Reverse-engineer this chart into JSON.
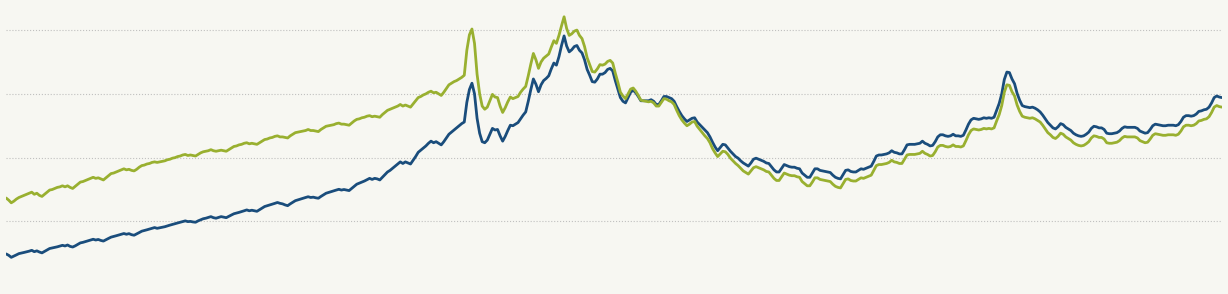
{
  "background_color": "#f7f7f2",
  "line_color_nominal": "#1a4d7c",
  "line_color_real": "#99b030",
  "line_width": 2.0,
  "grid_color": "#aaaaaa",
  "ylim_min": 40,
  "ylim_max": 300,
  "nominal": [
    69.4,
    68.1,
    66.2,
    67.3,
    68.5,
    69.7,
    70.2,
    70.8,
    71.4,
    72.0,
    72.8,
    71.5,
    72.3,
    71.2,
    70.4,
    71.8,
    73.2,
    74.5,
    75.0,
    75.6,
    76.1,
    76.8,
    77.5,
    76.9,
    77.8,
    76.5,
    75.9,
    77.0,
    78.4,
    79.8,
    80.3,
    81.0,
    81.7,
    82.4,
    83.2,
    82.5,
    83.0,
    82.1,
    81.5,
    82.8,
    84.0,
    85.2,
    85.8,
    86.5,
    87.2,
    87.9,
    88.6,
    87.9,
    88.5,
    87.5,
    87.0,
    88.2,
    89.5,
    90.8,
    91.4,
    92.1,
    92.8,
    93.5,
    94.2,
    93.5,
    94.0,
    94.5,
    95.0,
    95.8,
    96.5,
    97.2,
    97.8,
    98.5,
    99.2,
    99.8,
    100.5,
    99.8,
    100.0,
    99.5,
    99.2,
    100.5,
    101.5,
    102.5,
    103.0,
    103.8,
    104.5,
    103.5,
    103.0,
    103.8,
    104.5,
    104.0,
    103.5,
    104.8,
    106.0,
    107.2,
    107.8,
    108.5,
    109.2,
    110.0,
    110.8,
    110.0,
    110.5,
    110.0,
    109.5,
    111.0,
    112.5,
    114.0,
    114.8,
    115.5,
    116.2,
    117.0,
    117.8,
    117.0,
    116.5,
    115.5,
    114.8,
    116.5,
    118.0,
    119.5,
    120.2,
    121.0,
    121.8,
    122.5,
    123.2,
    122.5,
    122.8,
    122.2,
    121.8,
    123.5,
    125.0,
    126.5,
    127.2,
    128.0,
    128.8,
    129.5,
    130.2,
    129.5,
    130.0,
    129.5,
    129.0,
    131.0,
    133.0,
    135.0,
    136.0,
    137.0,
    138.0,
    139.2,
    140.5,
    139.5,
    140.5,
    140.0,
    139.0,
    141.5,
    144.0,
    146.5,
    148.0,
    150.0,
    152.0,
    154.0,
    156.0,
    154.5,
    156.0,
    155.0,
    154.0,
    157.5,
    161.0,
    165.0,
    167.0,
    169.0,
    171.0,
    173.5,
    175.5,
    174.0,
    175.0,
    173.5,
    172.0,
    175.0,
    178.5,
    182.0,
    184.0,
    186.0,
    188.0,
    190.0,
    192.0,
    193.5,
    212.0,
    224.0,
    230.0,
    220.0,
    197.0,
    183.0,
    175.0,
    174.0,
    176.5,
    182.0,
    187.5,
    186.0,
    186.5,
    180.5,
    175.5,
    180.0,
    185.5,
    190.5,
    190.0,
    191.5,
    193.0,
    196.5,
    200.0,
    203.0,
    213.0,
    224.0,
    234.0,
    229.0,
    222.0,
    228.5,
    232.5,
    234.5,
    237.0,
    243.5,
    249.0,
    247.0,
    255.0,
    265.5,
    274.5,
    265.0,
    259.5,
    261.5,
    264.5,
    265.5,
    261.0,
    258.5,
    252.0,
    243.0,
    237.5,
    231.5,
    231.0,
    234.0,
    238.5,
    238.5,
    240.0,
    243.0,
    244.0,
    241.5,
    232.5,
    224.5,
    216.5,
    213.0,
    211.5,
    216.5,
    221.5,
    223.5,
    221.0,
    217.5,
    213.5,
    213.5,
    213.5,
    213.5,
    214.5,
    213.0,
    210.0,
    210.0,
    213.5,
    217.5,
    217.5,
    216.5,
    215.5,
    213.0,
    208.0,
    203.5,
    199.5,
    196.5,
    194.0,
    195.5,
    197.0,
    197.5,
    193.5,
    191.0,
    188.5,
    186.0,
    183.5,
    179.5,
    174.5,
    170.0,
    166.5,
    169.5,
    172.5,
    172.0,
    169.0,
    166.0,
    163.5,
    161.0,
    159.5,
    157.0,
    155.0,
    153.5,
    152.0,
    155.0,
    158.5,
    159.5,
    158.5,
    157.5,
    156.5,
    155.0,
    154.5,
    151.5,
    148.5,
    146.5,
    146.5,
    150.0,
    153.5,
    152.5,
    151.5,
    151.0,
    151.0,
    150.0,
    149.5,
    145.5,
    143.5,
    141.5,
    141.5,
    145.5,
    149.5,
    149.5,
    148.0,
    147.5,
    147.0,
    146.5,
    146.0,
    143.5,
    141.5,
    140.5,
    140.0,
    144.0,
    148.0,
    148.5,
    147.0,
    146.5,
    146.5,
    148.0,
    149.5,
    149.0,
    150.0,
    151.0,
    152.0,
    156.5,
    161.5,
    162.5,
    162.5,
    163.0,
    163.5,
    164.5,
    166.5,
    165.0,
    164.5,
    163.5,
    163.5,
    167.5,
    172.0,
    172.5,
    172.5,
    172.5,
    173.0,
    173.5,
    175.5,
    173.5,
    172.5,
    171.0,
    171.5,
    175.0,
    179.5,
    181.5,
    181.5,
    180.5,
    180.0,
    180.5,
    182.0,
    180.5,
    180.5,
    180.0,
    181.0,
    186.0,
    191.5,
    195.5,
    197.0,
    196.5,
    196.0,
    196.5,
    197.5,
    197.0,
    197.5,
    197.0,
    198.0,
    204.5,
    211.0,
    220.0,
    233.5,
    240.5,
    240.0,
    234.0,
    229.5,
    220.5,
    214.0,
    209.0,
    208.0,
    207.5,
    207.0,
    207.5,
    206.5,
    205.0,
    203.0,
    200.0,
    196.5,
    193.0,
    190.5,
    188.0,
    187.0,
    189.0,
    192.0,
    191.0,
    188.5,
    187.0,
    185.5,
    183.0,
    181.5,
    180.5,
    180.0,
    180.5,
    182.0,
    184.0,
    187.5,
    189.5,
    189.0,
    188.0,
    188.0,
    186.5,
    183.0,
    182.5,
    182.5,
    183.0,
    183.5,
    185.0,
    187.5,
    189.0,
    188.5,
    188.5,
    188.5,
    188.5,
    187.5,
    185.0,
    184.0,
    183.0,
    183.5,
    186.5,
    190.0,
    191.5,
    191.0,
    190.5,
    190.0,
    190.0,
    190.5,
    190.5,
    190.5,
    190.0,
    191.0,
    194.0,
    198.0,
    199.5,
    199.5,
    199.0,
    199.5,
    201.0,
    203.5,
    204.0,
    205.0,
    205.5,
    207.5,
    211.5,
    216.5,
    218.0,
    217.0,
    216.5
  ],
  "real": [
    122.0,
    120.0,
    117.5,
    119.0,
    121.0,
    122.5,
    123.5,
    124.5,
    125.5,
    126.5,
    127.5,
    125.5,
    126.5,
    124.5,
    123.5,
    125.5,
    127.5,
    129.5,
    130.0,
    131.0,
    132.0,
    132.5,
    133.5,
    132.5,
    133.5,
    132.0,
    131.0,
    133.0,
    135.0,
    137.0,
    137.5,
    138.5,
    139.5,
    140.5,
    141.5,
    140.5,
    141.0,
    140.0,
    139.0,
    141.0,
    143.0,
    145.0,
    145.5,
    146.5,
    147.5,
    148.5,
    149.5,
    148.5,
    149.0,
    148.0,
    147.5,
    149.0,
    151.0,
    152.5,
    153.0,
    154.0,
    154.5,
    155.5,
    156.0,
    155.5,
    156.0,
    156.5,
    157.0,
    158.0,
    158.5,
    159.5,
    160.0,
    161.0,
    161.5,
    162.5,
    163.0,
    162.0,
    162.5,
    162.0,
    161.5,
    163.0,
    164.5,
    165.5,
    166.0,
    166.5,
    167.5,
    166.5,
    166.0,
    166.5,
    167.0,
    166.5,
    166.0,
    167.5,
    169.0,
    170.5,
    171.0,
    172.0,
    172.5,
    173.5,
    174.0,
    173.0,
    173.5,
    173.0,
    172.5,
    174.0,
    175.5,
    177.0,
    177.5,
    178.5,
    179.0,
    180.0,
    180.5,
    179.5,
    179.5,
    179.0,
    178.5,
    180.5,
    182.0,
    183.5,
    184.0,
    184.5,
    185.0,
    185.5,
    186.5,
    185.5,
    185.5,
    185.0,
    184.5,
    186.5,
    188.0,
    189.5,
    190.0,
    190.5,
    191.0,
    192.0,
    192.5,
    191.5,
    191.5,
    191.0,
    190.5,
    192.5,
    194.5,
    196.0,
    196.5,
    197.5,
    198.0,
    199.0,
    199.5,
    198.5,
    199.0,
    198.5,
    198.0,
    200.5,
    202.5,
    204.5,
    205.5,
    206.5,
    207.5,
    208.5,
    210.0,
    208.5,
    209.5,
    208.5,
    207.5,
    210.5,
    213.5,
    216.5,
    217.5,
    219.0,
    220.0,
    221.5,
    222.5,
    221.0,
    221.5,
    220.0,
    218.5,
    221.5,
    225.0,
    228.5,
    230.0,
    231.5,
    232.5,
    234.0,
    235.5,
    237.5,
    261.0,
    275.5,
    281.0,
    267.5,
    238.5,
    220.0,
    208.5,
    205.5,
    207.5,
    213.5,
    219.5,
    217.0,
    216.5,
    208.5,
    202.5,
    207.0,
    212.5,
    217.0,
    215.5,
    216.5,
    217.5,
    221.5,
    224.5,
    227.0,
    237.0,
    248.0,
    258.0,
    252.0,
    244.0,
    250.0,
    253.5,
    255.5,
    257.5,
    264.0,
    270.0,
    267.5,
    275.0,
    284.0,
    292.5,
    281.5,
    275.0,
    276.5,
    279.0,
    280.0,
    275.0,
    272.0,
    264.5,
    254.0,
    247.5,
    241.0,
    240.5,
    243.5,
    247.5,
    247.0,
    248.0,
    250.5,
    251.5,
    249.0,
    239.5,
    231.0,
    221.5,
    218.0,
    215.5,
    220.0,
    224.5,
    225.5,
    222.5,
    218.5,
    214.0,
    213.5,
    213.0,
    212.5,
    213.0,
    211.5,
    208.5,
    208.5,
    212.0,
    215.5,
    215.0,
    213.5,
    212.5,
    210.0,
    204.5,
    199.5,
    195.5,
    192.5,
    190.0,
    191.5,
    193.5,
    194.0,
    189.5,
    186.5,
    183.5,
    180.5,
    178.0,
    174.0,
    168.5,
    164.5,
    161.0,
    163.5,
    166.0,
    165.5,
    163.0,
    159.5,
    157.0,
    154.5,
    152.5,
    150.0,
    147.5,
    146.0,
    144.5,
    147.5,
    150.5,
    151.5,
    150.5,
    149.5,
    148.5,
    147.0,
    146.5,
    143.5,
    140.5,
    138.5,
    138.5,
    142.0,
    145.5,
    144.5,
    143.5,
    143.0,
    143.0,
    142.0,
    141.5,
    137.5,
    135.5,
    133.5,
    133.5,
    137.0,
    141.0,
    141.0,
    139.5,
    139.0,
    138.5,
    138.0,
    137.5,
    135.0,
    133.0,
    132.0,
    131.5,
    135.5,
    139.5,
    140.0,
    138.5,
    138.0,
    138.0,
    139.5,
    141.0,
    140.5,
    141.5,
    142.5,
    143.5,
    148.0,
    152.5,
    153.5,
    153.5,
    154.0,
    154.5,
    155.5,
    157.5,
    156.0,
    155.5,
    154.5,
    154.5,
    158.5,
    162.5,
    163.0,
    163.0,
    163.0,
    163.5,
    164.0,
    166.0,
    164.0,
    163.0,
    161.5,
    162.0,
    165.5,
    170.0,
    171.5,
    171.5,
    170.5,
    170.0,
    170.5,
    172.0,
    170.5,
    170.5,
    170.0,
    171.0,
    176.0,
    181.5,
    185.5,
    187.0,
    186.5,
    186.0,
    186.5,
    187.5,
    187.0,
    187.5,
    187.0,
    188.0,
    194.5,
    200.5,
    209.0,
    221.5,
    228.5,
    228.0,
    222.0,
    218.0,
    209.5,
    203.5,
    199.0,
    198.0,
    197.5,
    197.0,
    197.5,
    196.5,
    195.0,
    193.5,
    190.5,
    187.0,
    183.5,
    181.5,
    179.0,
    178.0,
    180.0,
    183.0,
    182.0,
    179.5,
    178.0,
    176.5,
    174.0,
    172.5,
    171.5,
    171.0,
    171.5,
    173.0,
    175.0,
    178.5,
    180.5,
    180.0,
    179.0,
    179.0,
    177.5,
    174.0,
    173.5,
    173.5,
    174.0,
    174.5,
    176.0,
    178.5,
    180.0,
    179.5,
    179.5,
    179.5,
    179.5,
    178.5,
    176.0,
    175.0,
    174.0,
    174.5,
    177.5,
    181.0,
    182.5,
    182.0,
    181.5,
    181.0,
    181.0,
    181.5,
    181.5,
    181.5,
    181.0,
    182.0,
    185.0,
    189.0,
    190.5,
    190.5,
    190.0,
    190.5,
    192.0,
    194.5,
    195.0,
    196.0,
    196.5,
    198.5,
    202.5,
    207.5,
    209.0,
    208.0,
    207.5
  ]
}
